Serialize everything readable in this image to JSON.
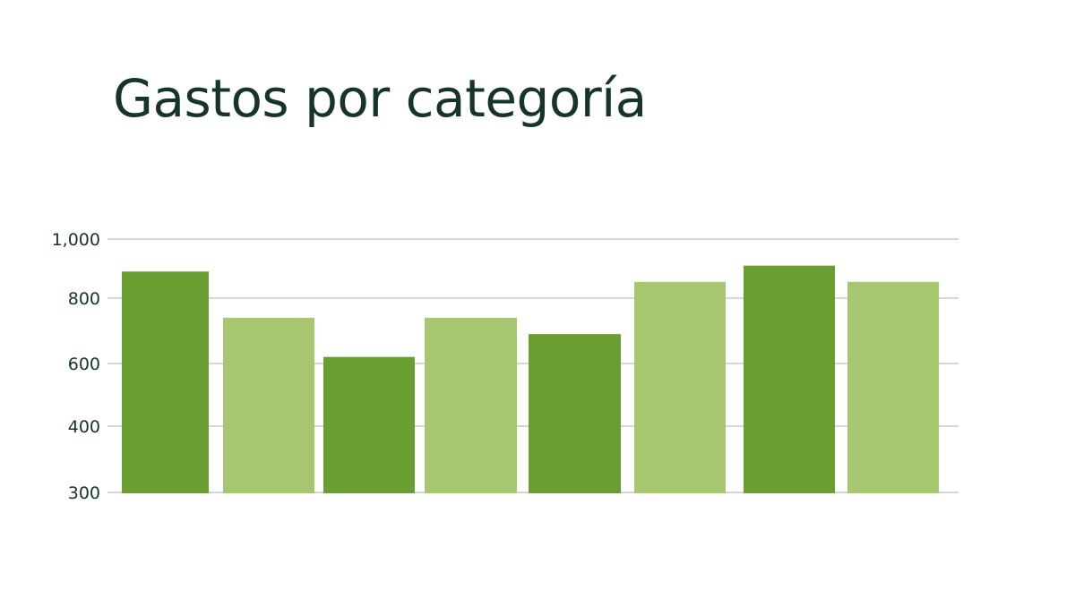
{
  "chart_data": {
    "type": "bar",
    "title": "Gastos por categoría",
    "xlabel": "",
    "ylabel": "",
    "categories": [
      "",
      "",
      "",
      "",
      "",
      "",
      "",
      ""
    ],
    "values": [
      890,
      740,
      620,
      740,
      690,
      855,
      910,
      855
    ],
    "y_ticks": [
      300,
      400,
      600,
      800,
      1000
    ],
    "y_tick_labels": [
      "300",
      "400",
      "600",
      "800",
      "1,000"
    ],
    "ylim": [
      300,
      1000
    ],
    "grid": true,
    "legend": "none",
    "colors": {
      "dark": "#6a9e30",
      "light": "#a6c66f",
      "gridline": "#c9c9c9",
      "text": "#173527"
    },
    "bar_color_pattern": [
      "dark",
      "light",
      "dark",
      "light",
      "dark",
      "light",
      "dark",
      "light"
    ]
  }
}
